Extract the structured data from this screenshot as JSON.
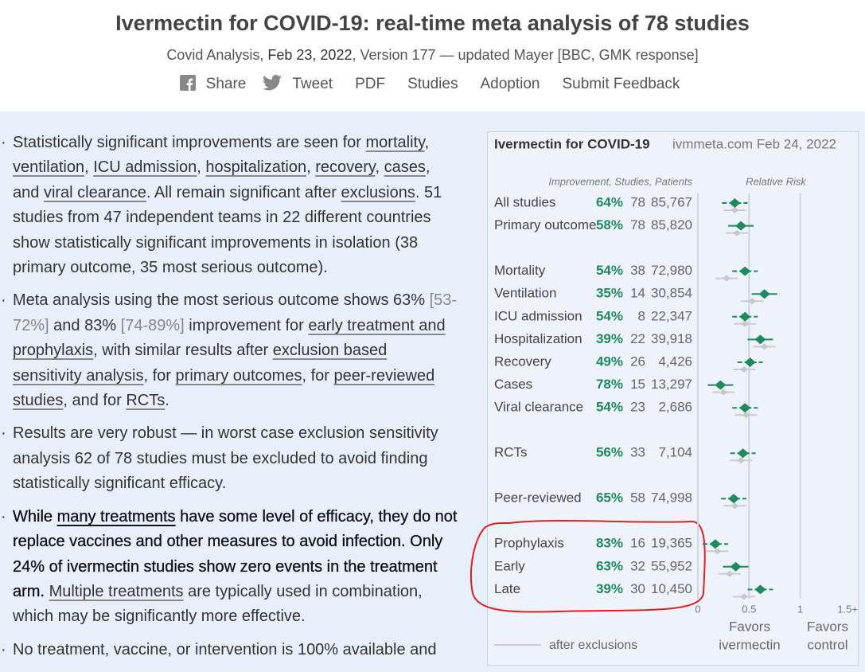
{
  "header": {
    "title": "Ivermectin for COVID-19: real-time meta analysis of 78 studies",
    "byline": [
      {
        "text": "Covid Analysis, ",
        "style": "plain"
      },
      {
        "text": "Feb 23, 2022",
        "style": "dark"
      },
      {
        "text": ", Version 177 — updated Mayer  [BBC, GMK response]",
        "style": "plain"
      }
    ],
    "nav": [
      "Share",
      "Tweet",
      "PDF",
      "Studies",
      "Adoption",
      "Submit Feedback"
    ]
  },
  "bullets": [
    [
      {
        "text": "Statistically significant improvements are seen for ",
        "style": "plain"
      },
      {
        "text": "mortality",
        "style": "link"
      },
      {
        "text": ", ",
        "style": "plain"
      },
      {
        "text": "ventilation",
        "style": "link"
      },
      {
        "text": ", ",
        "style": "plain"
      },
      {
        "text": "ICU admission",
        "style": "link"
      },
      {
        "text": ", ",
        "style": "plain"
      },
      {
        "text": "hospitalization",
        "style": "link"
      },
      {
        "text": ", ",
        "style": "plain"
      },
      {
        "text": "recovery",
        "style": "link"
      },
      {
        "text": ", ",
        "style": "plain"
      },
      {
        "text": "cases",
        "style": "link"
      },
      {
        "text": ", and ",
        "style": "plain"
      },
      {
        "text": "viral clearance",
        "style": "link"
      },
      {
        "text": ". All remain significant after ",
        "style": "plain"
      },
      {
        "text": "exclusions",
        "style": "link"
      },
      {
        "text": ". 51 studies from 47 independent teams in 22 different countries show statistically significant improvements in isolation (38 primary outcome, 35 most serious outcome).",
        "style": "plain"
      }
    ],
    [
      {
        "text": "Meta analysis using the most serious outcome shows 63% ",
        "style": "plain"
      },
      {
        "text": "[53-72%]",
        "style": "gray"
      },
      {
        "text": " and 83% ",
        "style": "plain"
      },
      {
        "text": "[74-89%]",
        "style": "gray"
      },
      {
        "text": " improvement for ",
        "style": "plain"
      },
      {
        "text": "early treatment and prophylaxis",
        "style": "link"
      },
      {
        "text": ", with similar results after ",
        "style": "plain"
      },
      {
        "text": "exclusion based sensitivity analysis",
        "style": "link"
      },
      {
        "text": ", for ",
        "style": "plain"
      },
      {
        "text": "primary outcomes",
        "style": "link"
      },
      {
        "text": ", for ",
        "style": "plain"
      },
      {
        "text": "peer-reviewed studies",
        "style": "link"
      },
      {
        "text": ", and for ",
        "style": "plain"
      },
      {
        "text": "RCTs",
        "style": "link"
      },
      {
        "text": ".",
        "style": "plain"
      }
    ],
    [
      {
        "text": "Results are very robust — in worst case exclusion sensitivity analysis 62 of 78 studies must be excluded to avoid finding statistically significant efficacy.",
        "style": "plain"
      }
    ],
    [
      {
        "text": "While ",
        "style": "bold"
      },
      {
        "text": "many treatments",
        "style": "bold-link"
      },
      {
        "text": " have some level of efficacy, they do not replace vaccines and other measures to avoid infection. Only 24% of ivermectin studies show zero events in the treatment arm. ",
        "style": "bold"
      },
      {
        "text": "Multiple treatments",
        "style": "link"
      },
      {
        "text": " are typically used in combination, which may be significantly more effective.",
        "style": "plain"
      }
    ],
    [
      {
        "text": "No treatment, vaccine, or intervention is 100% available and",
        "style": "plain"
      }
    ]
  ],
  "forest": {
    "title": "Ivermectin for COVID-19",
    "source": "ivmmeta.com Feb 24, 2022",
    "columns_header": "Improvement, Studies, Patients",
    "rr_header": "Relative Risk",
    "groups": [
      [
        {
          "label": "All studies",
          "improvement": "64%",
          "studies": "78",
          "patients": "85,767",
          "rr": 0.36,
          "rr_excl": 0.36
        },
        {
          "label": "Primary outcome",
          "improvement": "58%",
          "studies": "78",
          "patients": "85,820",
          "rr": 0.42,
          "rr_excl": 0.38
        }
      ],
      [
        {
          "label": "Mortality",
          "improvement": "54%",
          "studies": "38",
          "patients": "72,980",
          "rr": 0.46,
          "rr_excl": 0.28
        },
        {
          "label": "Ventilation",
          "improvement": "35%",
          "studies": "14",
          "patients": "30,854",
          "rr": 0.65,
          "rr_excl": 0.53
        },
        {
          "label": "ICU admission",
          "improvement": "54%",
          "studies": "8",
          "patients": "22,347",
          "rr": 0.46,
          "rr_excl": 0.46
        },
        {
          "label": "Hospitalization",
          "improvement": "39%",
          "studies": "22",
          "patients": "39,918",
          "rr": 0.61,
          "rr_excl": 0.65
        },
        {
          "label": "Recovery",
          "improvement": "49%",
          "studies": "26",
          "patients": "4,426",
          "rr": 0.51,
          "rr_excl": 0.45
        },
        {
          "label": "Cases",
          "improvement": "78%",
          "studies": "15",
          "patients": "13,297",
          "rr": 0.22,
          "rr_excl": 0.25
        },
        {
          "label": "Viral clearance",
          "improvement": "54%",
          "studies": "23",
          "patients": "2,686",
          "rr": 0.46,
          "rr_excl": 0.47
        }
      ],
      [
        {
          "label": "RCTs",
          "improvement": "56%",
          "studies": "33",
          "patients": "7,104",
          "rr": 0.44,
          "rr_excl": 0.42
        }
      ],
      [
        {
          "label": "Peer-reviewed",
          "improvement": "65%",
          "studies": "58",
          "patients": "74,998",
          "rr": 0.35,
          "rr_excl": 0.36
        }
      ],
      [
        {
          "label": "Prophylaxis",
          "improvement": "83%",
          "studies": "16",
          "patients": "19,365",
          "rr": 0.17,
          "rr_excl": 0.19
        },
        {
          "label": "Early",
          "improvement": "63%",
          "studies": "32",
          "patients": "55,952",
          "rr": 0.37,
          "rr_excl": 0.31
        },
        {
          "label": "Late",
          "improvement": "39%",
          "studies": "30",
          "patients": "10,450",
          "rr": 0.61,
          "rr_excl": 0.45
        }
      ]
    ],
    "xlim": [
      0,
      1.5
    ],
    "xticks": [
      0,
      0.5,
      1,
      {
        "value": 1.5,
        "label": "1.5+"
      }
    ],
    "favors_left": [
      "Favors",
      "ivermectin"
    ],
    "favors_right": [
      "Favors",
      "control"
    ],
    "legend": "after exclusions"
  }
}
